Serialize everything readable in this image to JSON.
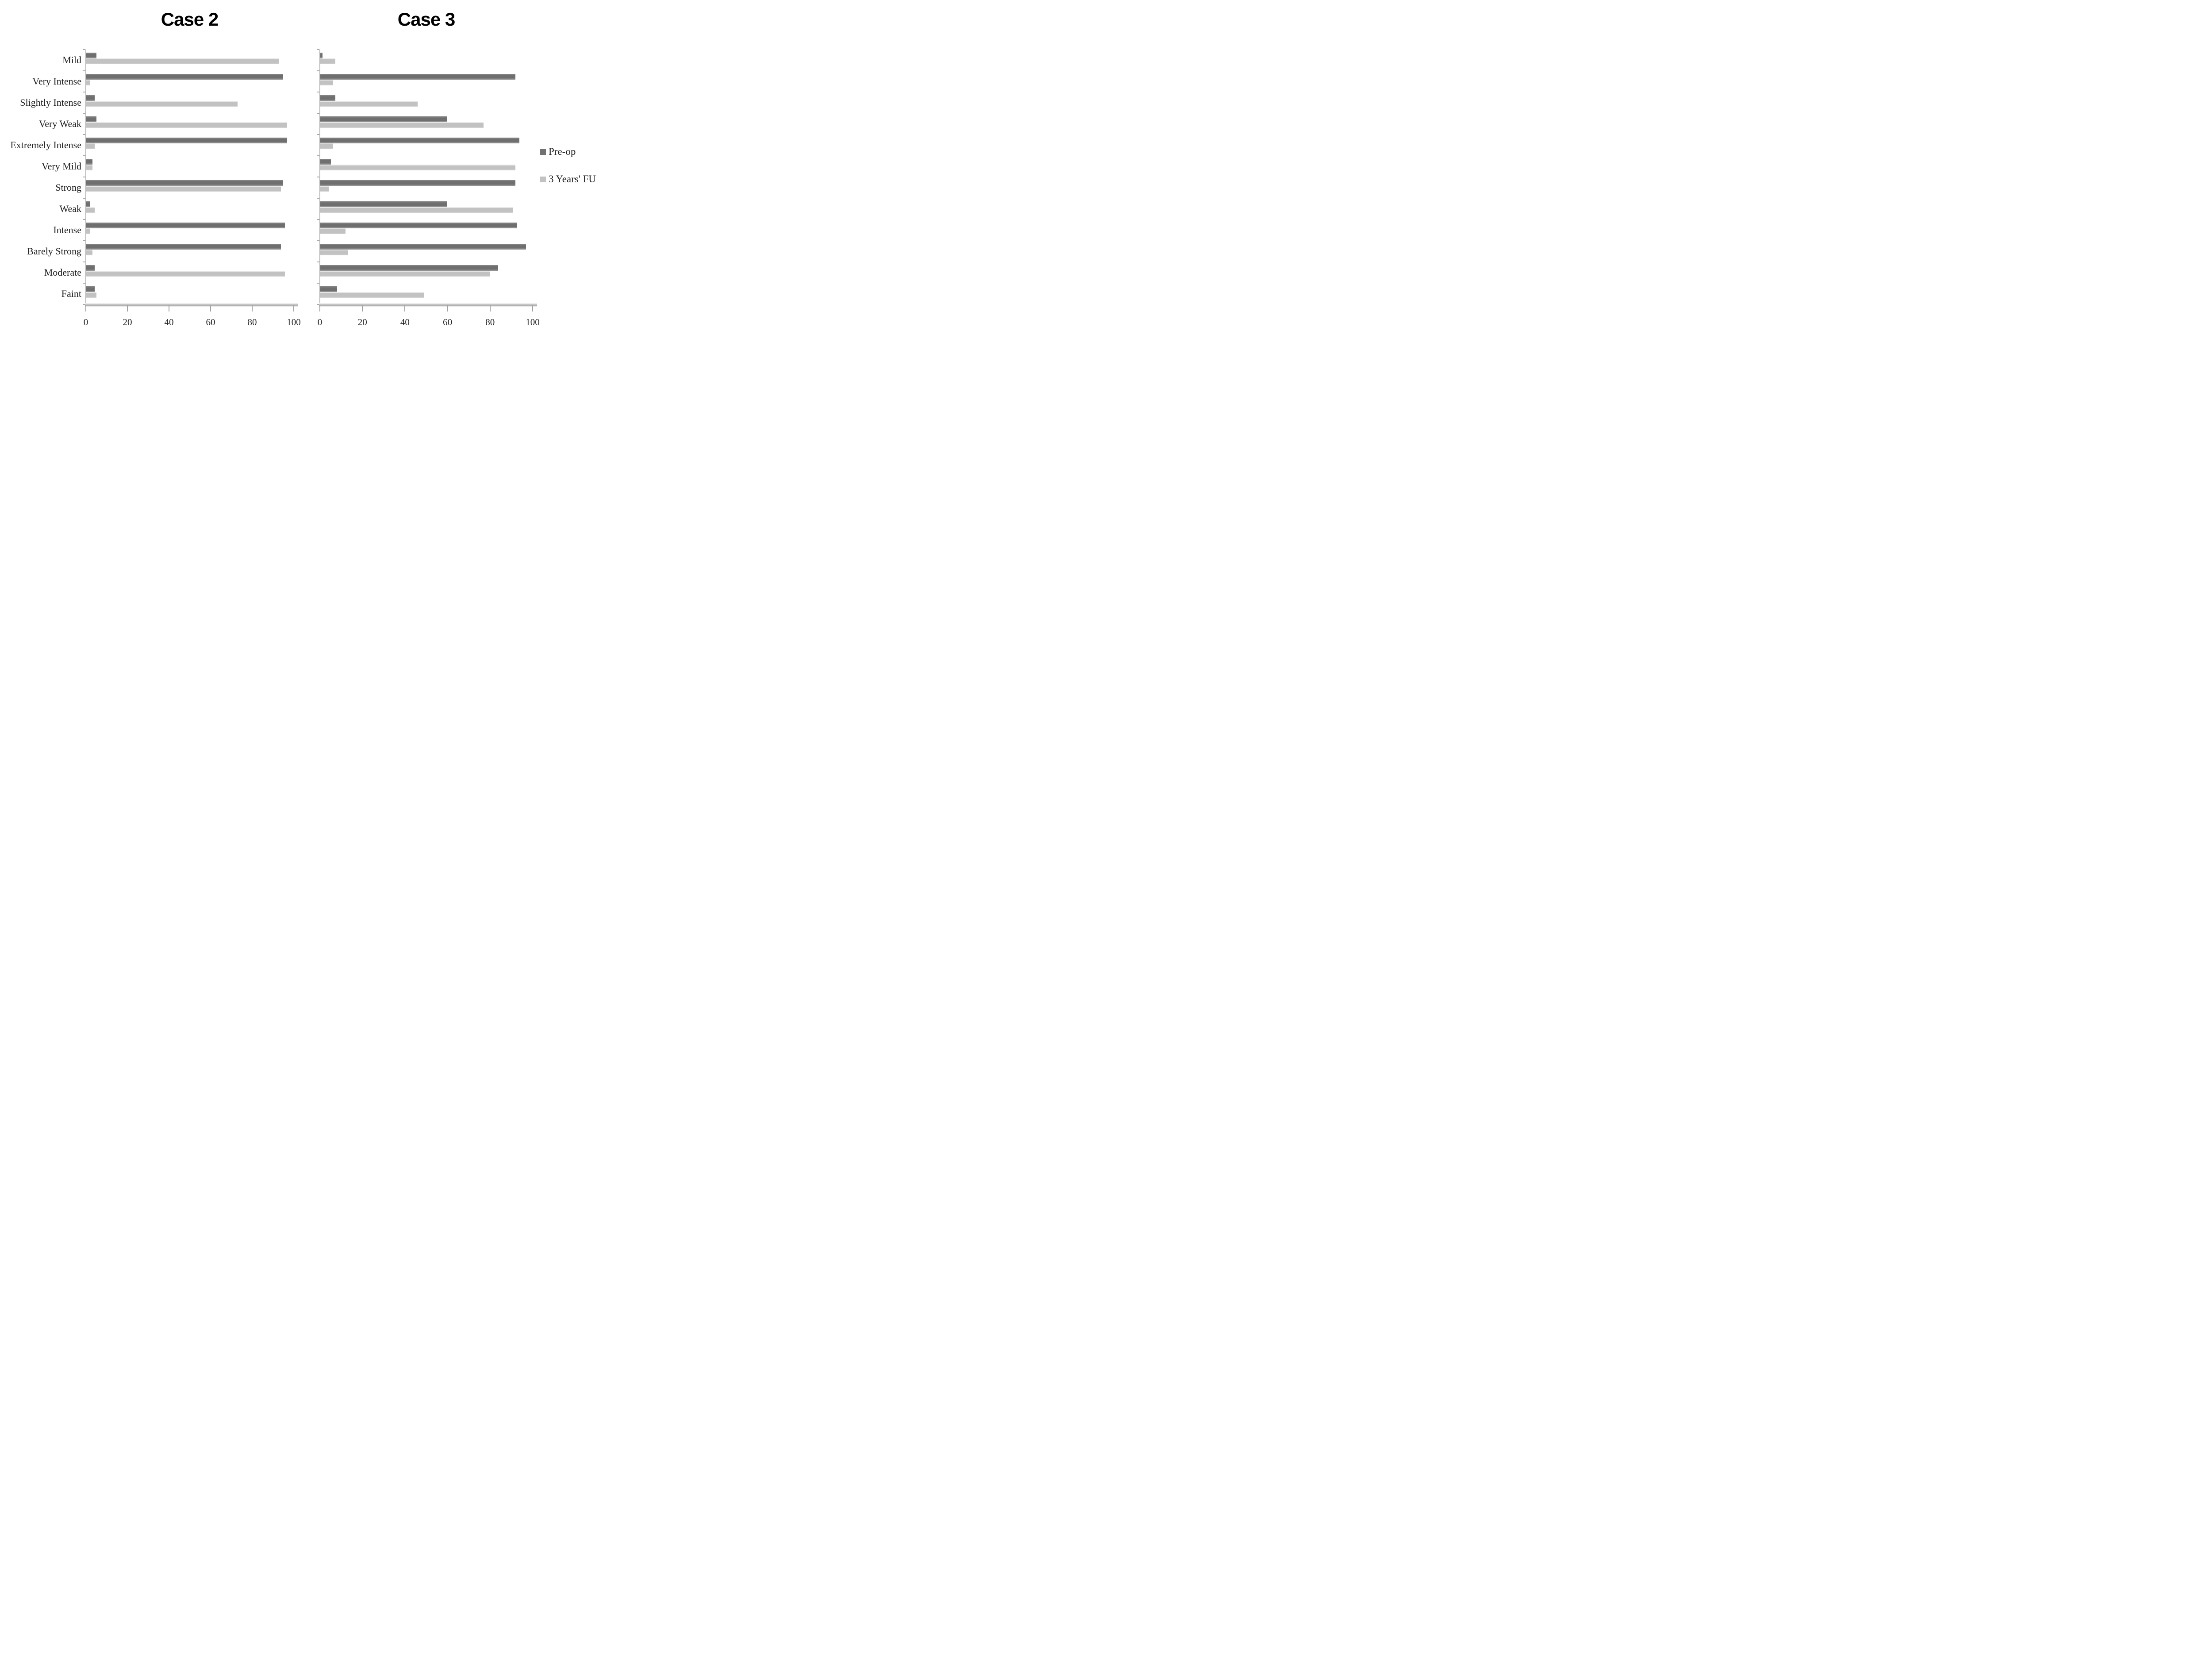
{
  "titles": {
    "left": "Case 2",
    "right": "Case 3"
  },
  "legend": {
    "items": [
      {
        "label": "Pre-op",
        "color": "#717171",
        "swatch_icon": "square-swatch-icon"
      },
      {
        "label": "3 Years' FU",
        "color": "#c2c2c2",
        "swatch_icon": "square-swatch-icon"
      }
    ],
    "position": "right"
  },
  "axis": {
    "ticks": [
      0,
      20,
      40,
      60,
      80,
      100
    ]
  },
  "colors": {
    "preop_bar": "#717171",
    "fu_bar": "#c2c2c2",
    "axis_line": "#b3b3b3",
    "title_text": "#000000",
    "label_text": "#1f1f1f"
  },
  "chart_data": [
    {
      "type": "bar",
      "orientation": "horizontal",
      "title": "Case 2",
      "xlabel": "",
      "ylabel": "",
      "xlim": [
        0,
        100
      ],
      "x_ticks": [
        0,
        20,
        40,
        60,
        80,
        100
      ],
      "grid": false,
      "legend_position": "right",
      "categories": [
        "Mild",
        "Very Intense",
        "Slightly Intense",
        "Very Weak",
        "Extremely Intense",
        "Very Mild",
        "Strong",
        "Weak",
        "Intense",
        "Barely Strong",
        "Moderate",
        "Faint"
      ],
      "series": [
        {
          "name": "Pre-op",
          "values": [
            5,
            95,
            4,
            5,
            97,
            3,
            95,
            2,
            96,
            94,
            4,
            4
          ]
        },
        {
          "name": "3 Years' FU",
          "values": [
            93,
            2,
            73,
            97,
            4,
            3,
            94,
            4,
            2,
            3,
            96,
            5
          ]
        }
      ]
    },
    {
      "type": "bar",
      "orientation": "horizontal",
      "title": "Case 3",
      "xlabel": "",
      "ylabel": "",
      "xlim": [
        0,
        100
      ],
      "x_ticks": [
        0,
        20,
        40,
        60,
        80,
        100
      ],
      "grid": false,
      "legend_position": "right",
      "categories": [
        "Mild",
        "Very Intense",
        "Slightly Intense",
        "Very Weak",
        "Extremely Intense",
        "Very Mild",
        "Strong",
        "Weak",
        "Intense",
        "Barely Strong",
        "Moderate",
        "Faint"
      ],
      "series": [
        {
          "name": "Pre-op",
          "values": [
            1,
            92,
            7,
            60,
            94,
            5,
            92,
            60,
            93,
            97,
            84,
            8
          ]
        },
        {
          "name": "3 Years' FU",
          "values": [
            7,
            6,
            46,
            77,
            6,
            92,
            4,
            91,
            12,
            13,
            80,
            49
          ]
        }
      ]
    }
  ]
}
